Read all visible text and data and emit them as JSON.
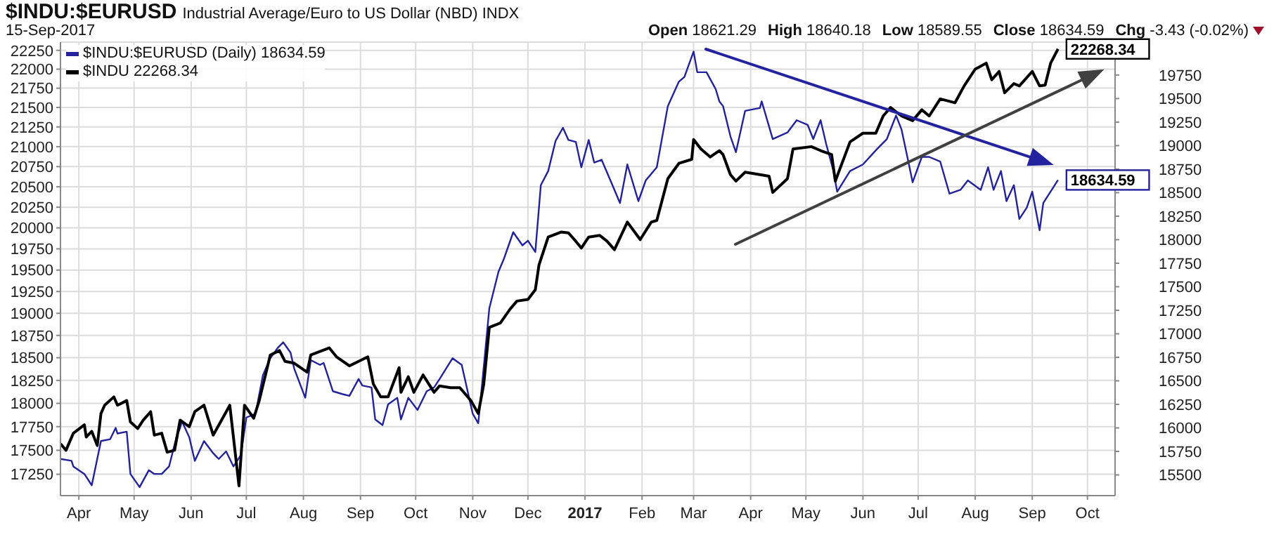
{
  "chart_data": {
    "type": "line",
    "title": "$INDU:$EURUSD",
    "subtitle": "Industrial Average/Euro to US Dollar (NBD) INDX",
    "annotations": [
      "15-Sep-2017",
      "Open 18621.29",
      "High 18640.18",
      "Low 18589.55",
      "Close 18634.59",
      "Chg -3.43 (-0.02%)"
    ],
    "xlim": [
      "2016-03-22",
      "2017-10-16"
    ],
    "xticks": [
      {
        "value": "2016-04-01",
        "label": "Apr"
      },
      {
        "value": "2016-05-01",
        "label": "May"
      },
      {
        "value": "2016-06-01",
        "label": "Jun"
      },
      {
        "value": "2016-07-01",
        "label": "Jul"
      },
      {
        "value": "2016-08-01",
        "label": "Aug"
      },
      {
        "value": "2016-09-01",
        "label": "Sep"
      },
      {
        "value": "2016-10-01",
        "label": "Oct"
      },
      {
        "value": "2016-11-01",
        "label": "Nov"
      },
      {
        "value": "2016-12-01",
        "label": "Dec"
      },
      {
        "value": "2017-01-01",
        "label": "2017"
      },
      {
        "value": "2017-02-01",
        "label": "Feb"
      },
      {
        "value": "2017-03-01",
        "label": "Mar"
      },
      {
        "value": "2017-04-01",
        "label": "Apr"
      },
      {
        "value": "2017-05-01",
        "label": "May"
      },
      {
        "value": "2017-06-01",
        "label": "Jun"
      },
      {
        "value": "2017-07-01",
        "label": "Jul"
      },
      {
        "value": "2017-08-01",
        "label": "Aug"
      },
      {
        "value": "2017-09-01",
        "label": "Sep"
      },
      {
        "value": "2017-10-01",
        "label": "Oct"
      }
    ],
    "ylim": [
      17030,
      22360
    ],
    "yticks": [
      17250,
      17500,
      17750,
      18000,
      18250,
      18500,
      18750,
      19000,
      19250,
      19500,
      19750,
      20000,
      20250,
      20500,
      20750,
      21000,
      21250,
      21500,
      21750,
      22000,
      22250
    ],
    "y2lim": [
      15280,
      20100
    ],
    "y2ticks": [
      15500,
      15750,
      16000,
      16250,
      16500,
      16750,
      17000,
      17250,
      17500,
      17750,
      18000,
      18250,
      18500,
      18750,
      19000,
      19250,
      19500,
      19750
    ],
    "log": true,
    "grid": true,
    "legend": "top left",
    "series": [
      {
        "name": "$INDU:$EURUSD (Daily) 18634.59",
        "color": "#22229c",
        "axis": "y2",
        "x": [
          "2016-03-22",
          "2016-03-28",
          "2016-03-29",
          "2016-04-04",
          "2016-04-08",
          "2016-04-13",
          "2016-04-18",
          "2016-04-21",
          "2016-04-22",
          "2016-04-27",
          "2016-04-29",
          "2016-05-04",
          "2016-05-09",
          "2016-05-12",
          "2016-05-16",
          "2016-05-20",
          "2016-05-24",
          "2016-05-26",
          "2016-05-27",
          "2016-05-31",
          "2016-06-03",
          "2016-06-08",
          "2016-06-13",
          "2016-06-16",
          "2016-06-20",
          "2016-06-24",
          "2016-06-28",
          "2016-07-01",
          "2016-07-06",
          "2016-07-10",
          "2016-07-14",
          "2016-07-18",
          "2016-07-21",
          "2016-07-25",
          "2016-07-27",
          "2016-08-02",
          "2016-08-05",
          "2016-08-10",
          "2016-08-12",
          "2016-08-17",
          "2016-08-22",
          "2016-08-26",
          "2016-08-31",
          "2016-09-02",
          "2016-09-07",
          "2016-09-09",
          "2016-09-13",
          "2016-09-16",
          "2016-09-21",
          "2016-09-23",
          "2016-09-27",
          "2016-10-02",
          "2016-10-07",
          "2016-10-11",
          "2016-10-14",
          "2016-10-21",
          "2016-10-26",
          "2016-11-01",
          "2016-11-04",
          "2016-11-07",
          "2016-11-10",
          "2016-11-15",
          "2016-11-18",
          "2016-11-23",
          "2016-11-28",
          "2016-12-01",
          "2016-12-05",
          "2016-12-08",
          "2016-12-12",
          "2016-12-16",
          "2016-12-20",
          "2016-12-23",
          "2016-12-27",
          "2016-12-30",
          "2017-01-03",
          "2017-01-06",
          "2017-01-10",
          "2017-01-17",
          "2017-01-20",
          "2017-01-24",
          "2017-01-30",
          "2017-02-03",
          "2017-02-09",
          "2017-02-15",
          "2017-02-21",
          "2017-02-24",
          "2017-03-01",
          "2017-03-03",
          "2017-03-08",
          "2017-03-13",
          "2017-03-15",
          "2017-03-17",
          "2017-03-21",
          "2017-03-24",
          "2017-03-29",
          "2017-04-06",
          "2017-04-07",
          "2017-04-13",
          "2017-04-21",
          "2017-04-26",
          "2017-05-02",
          "2017-05-05",
          "2017-05-09",
          "2017-05-12",
          "2017-05-16",
          "2017-05-18",
          "2017-05-25",
          "2017-06-01",
          "2017-06-08",
          "2017-06-14",
          "2017-06-19",
          "2017-06-22",
          "2017-06-26",
          "2017-06-28",
          "2017-07-03",
          "2017-07-07",
          "2017-07-13",
          "2017-07-18",
          "2017-07-24",
          "2017-07-28",
          "2017-08-04",
          "2017-08-08",
          "2017-08-11",
          "2017-08-15",
          "2017-08-18",
          "2017-08-22",
          "2017-08-25",
          "2017-08-29",
          "2017-09-01",
          "2017-09-05",
          "2017-09-07",
          "2017-09-15"
        ],
        "values": [
          15670,
          15650,
          15590,
          15510,
          15390,
          15860,
          15880,
          16000,
          15940,
          15960,
          15510,
          15370,
          15550,
          15510,
          15510,
          15590,
          15900,
          16000,
          16070,
          15900,
          15650,
          15860,
          15730,
          15670,
          15750,
          15590,
          15710,
          16110,
          16150,
          16560,
          16740,
          16850,
          16910,
          16800,
          16630,
          16320,
          16720,
          16670,
          16690,
          16390,
          16360,
          16340,
          16520,
          16450,
          16430,
          16090,
          16030,
          16250,
          16320,
          16090,
          16320,
          16190,
          16390,
          16430,
          16520,
          16740,
          16670,
          16150,
          16050,
          16650,
          17270,
          17660,
          17800,
          18080,
          17940,
          17990,
          17870,
          18580,
          18730,
          19050,
          19190,
          19060,
          19040,
          18770,
          19060,
          18820,
          18850,
          18530,
          18390,
          18800,
          18410,
          18630,
          18770,
          19420,
          19680,
          19730,
          20000,
          19780,
          19780,
          19600,
          19470,
          19420,
          19100,
          18930,
          19370,
          19400,
          19470,
          19070,
          19140,
          19270,
          19220,
          19070,
          19270,
          19020,
          18730,
          18510,
          18730,
          18800,
          18950,
          19070,
          19320,
          19170,
          18800,
          18610,
          18880,
          18880,
          18830,
          18490,
          18530,
          18630,
          18530,
          18770,
          18530,
          18730,
          18410,
          18580,
          18220,
          18340,
          18510,
          18100,
          18390,
          18634.59
        ],
        "value_labels": [
          null,
          null,
          null,
          null,
          null,
          null,
          null,
          null,
          null,
          null,
          null,
          null,
          null,
          null,
          null,
          null,
          null,
          null,
          null,
          null,
          null,
          null,
          null,
          null,
          null,
          null,
          null,
          null,
          null,
          null,
          null,
          null,
          null,
          null,
          null,
          null,
          null,
          null,
          null,
          null,
          null,
          null,
          null,
          null,
          null,
          null,
          null,
          null,
          null,
          null,
          null,
          null,
          null,
          null,
          null,
          null,
          null,
          null,
          null,
          null,
          null,
          null,
          null,
          null,
          null,
          null,
          null,
          null,
          null,
          null,
          null,
          null,
          null,
          null,
          null,
          null,
          null,
          null,
          null,
          null,
          null,
          null,
          null,
          null,
          null,
          null,
          null,
          null,
          null,
          null,
          null,
          null,
          null,
          null,
          null,
          null,
          null,
          null,
          null,
          null,
          null,
          null,
          null,
          null,
          null,
          null,
          null,
          null,
          null,
          null,
          null,
          null,
          null,
          null,
          null,
          null,
          null,
          null,
          null,
          null,
          null,
          null,
          null,
          null,
          null,
          null,
          null,
          null,
          null,
          null,
          null,
          "18634.59"
        ]
      },
      {
        "name": "$INDU 22268.34",
        "color": "#000000",
        "axis": "y",
        "x": [
          "2016-03-22",
          "2016-03-25",
          "2016-03-29",
          "2016-04-04",
          "2016-04-05",
          "2016-04-08",
          "2016-04-11",
          "2016-04-13",
          "2016-04-15",
          "2016-04-20",
          "2016-04-22",
          "2016-04-27",
          "2016-04-29",
          "2016-05-03",
          "2016-05-06",
          "2016-05-10",
          "2016-05-12",
          "2016-05-16",
          "2016-05-19",
          "2016-05-23",
          "2016-05-26",
          "2016-05-31",
          "2016-06-03",
          "2016-06-08",
          "2016-06-13",
          "2016-06-17",
          "2016-06-22",
          "2016-06-27",
          "2016-06-30",
          "2016-07-05",
          "2016-07-08",
          "2016-07-12",
          "2016-07-14",
          "2016-07-19",
          "2016-07-22",
          "2016-07-27",
          "2016-08-03",
          "2016-08-05",
          "2016-08-15",
          "2016-08-19",
          "2016-08-26",
          "2016-08-31",
          "2016-09-05",
          "2016-09-08",
          "2016-09-12",
          "2016-09-16",
          "2016-09-22",
          "2016-09-23",
          "2016-09-27",
          "2016-09-30",
          "2016-10-05",
          "2016-10-11",
          "2016-10-14",
          "2016-10-20",
          "2016-10-25",
          "2016-10-31",
          "2016-11-04",
          "2016-11-07",
          "2016-11-10",
          "2016-11-16",
          "2016-11-21",
          "2016-11-25",
          "2016-12-01",
          "2016-12-05",
          "2016-12-07",
          "2016-12-12",
          "2016-12-19",
          "2016-12-23",
          "2016-12-27",
          "2016-12-30",
          "2017-01-03",
          "2017-01-09",
          "2017-01-13",
          "2017-01-17",
          "2017-01-24",
          "2017-01-31",
          "2017-02-06",
          "2017-02-09",
          "2017-02-15",
          "2017-02-21",
          "2017-02-28",
          "2017-03-01",
          "2017-03-05",
          "2017-03-10",
          "2017-03-15",
          "2017-03-17",
          "2017-03-21",
          "2017-03-24",
          "2017-03-29",
          "2017-04-06",
          "2017-04-11",
          "2017-04-13",
          "2017-04-21",
          "2017-04-24",
          "2017-05-04",
          "2017-05-09",
          "2017-05-15",
          "2017-05-17",
          "2017-05-25",
          "2017-06-01",
          "2017-06-08",
          "2017-06-12",
          "2017-06-16",
          "2017-06-22",
          "2017-06-28",
          "2017-07-03",
          "2017-07-07",
          "2017-07-13",
          "2017-07-21",
          "2017-07-26",
          "2017-08-01",
          "2017-08-07",
          "2017-08-10",
          "2017-08-14",
          "2017-08-17",
          "2017-08-22",
          "2017-08-25",
          "2017-09-01",
          "2017-09-05",
          "2017-09-08",
          "2017-09-11",
          "2017-09-15"
        ],
        "values": [
          17570,
          17500,
          17680,
          17770,
          17640,
          17700,
          17550,
          17890,
          17980,
          18070,
          17980,
          18030,
          17800,
          17730,
          17820,
          17910,
          17660,
          17680,
          17480,
          17500,
          17820,
          17750,
          17910,
          17980,
          17660,
          17800,
          17980,
          17130,
          17980,
          17840,
          18030,
          18360,
          18530,
          18580,
          18460,
          18440,
          18340,
          18530,
          18610,
          18510,
          18410,
          18460,
          18510,
          18210,
          18070,
          18070,
          18390,
          18120,
          18290,
          18120,
          18310,
          18120,
          18190,
          18170,
          18170,
          18030,
          17890,
          18210,
          18840,
          18890,
          19040,
          19140,
          19160,
          19270,
          19560,
          19890,
          19950,
          19940,
          19840,
          19760,
          19890,
          19910,
          19840,
          19740,
          20070,
          19860,
          20070,
          20090,
          20600,
          20790,
          20840,
          21090,
          20970,
          20870,
          20950,
          20900,
          20650,
          20570,
          20680,
          20650,
          20630,
          20430,
          20600,
          20970,
          21000,
          20950,
          20900,
          20570,
          21060,
          21170,
          21170,
          21390,
          21500,
          21390,
          21330,
          21470,
          21390,
          21610,
          21560,
          21780,
          22000,
          22080,
          21860,
          21970,
          21690,
          21810,
          21780,
          21970,
          21780,
          21790,
          22080,
          22268.34
        ],
        "value_labels": [
          null,
          null,
          null,
          null,
          null,
          null,
          null,
          null,
          null,
          null,
          null,
          null,
          null,
          null,
          null,
          null,
          null,
          null,
          null,
          null,
          null,
          null,
          null,
          null,
          null,
          null,
          null,
          null,
          null,
          null,
          null,
          null,
          null,
          null,
          null,
          null,
          null,
          null,
          null,
          null,
          null,
          null,
          null,
          null,
          null,
          null,
          null,
          null,
          null,
          null,
          null,
          null,
          null,
          null,
          null,
          null,
          null,
          null,
          null,
          null,
          null,
          null,
          null,
          null,
          null,
          null,
          null,
          null,
          null,
          null,
          null,
          null,
          null,
          null,
          null,
          null,
          null,
          null,
          null,
          null,
          null,
          null,
          null,
          null,
          null,
          null,
          null,
          null,
          null,
          null,
          null,
          null,
          null,
          null,
          null,
          null,
          null,
          null,
          null,
          null,
          null,
          null,
          null,
          null,
          null,
          null,
          null,
          null,
          null,
          null,
          null,
          null,
          null,
          null,
          null,
          null,
          null,
          null,
          null,
          null,
          null,
          "22268.34"
        ]
      }
    ]
  }
}
